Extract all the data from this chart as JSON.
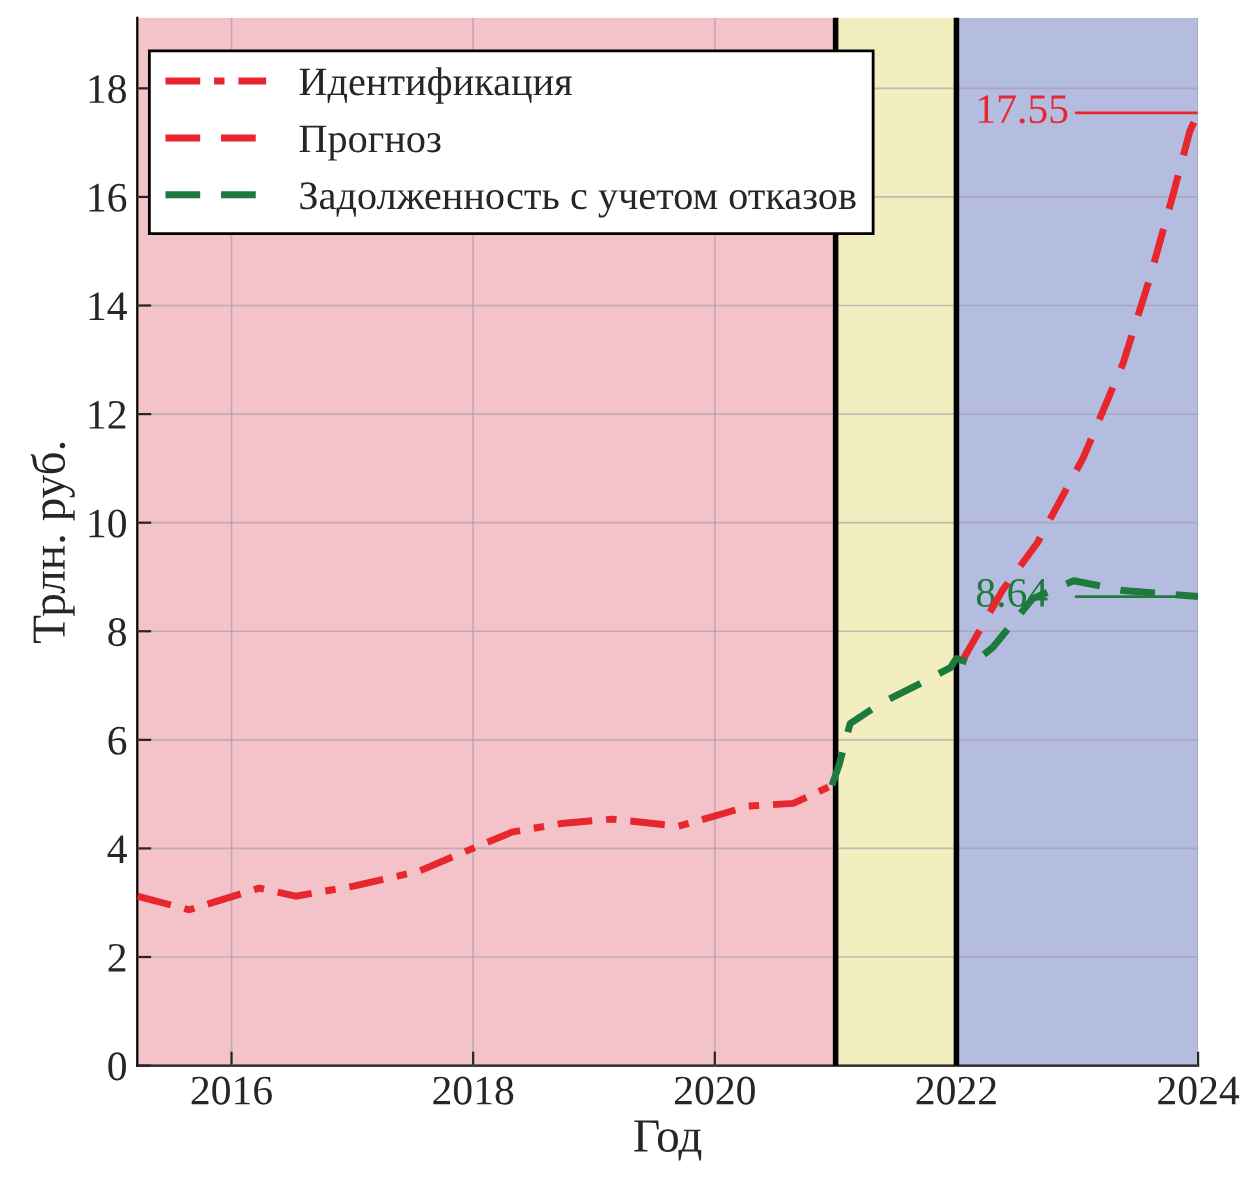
{
  "chart_data": {
    "type": "line",
    "xlabel": "Год",
    "ylabel": "Трлн. руб.",
    "xlim": [
      2015.22,
      2024
    ],
    "ylim": [
      0,
      19.3
    ],
    "xticks": [
      2016,
      2018,
      2020,
      2022,
      2024
    ],
    "yticks": [
      0,
      2,
      4,
      6,
      8,
      10,
      12,
      14,
      16,
      18
    ],
    "grid": true,
    "legend": "top left",
    "marker": "none",
    "series": [
      {
        "name": "Идентификация",
        "color": "#e8262e",
        "line_style": "dashdot",
        "x": [
          2015.22,
          2015.65,
          2016.23,
          2016.53,
          2017.02,
          2017.55,
          2017.9,
          2018.32,
          2018.73,
          2019.15,
          2019.7,
          2020.05,
          2020.28,
          2020.65,
          2020.97
        ],
        "values": [
          3.12,
          2.87,
          3.27,
          3.12,
          3.31,
          3.58,
          3.91,
          4.3,
          4.46,
          4.54,
          4.41,
          4.63,
          4.78,
          4.83,
          5.16
        ]
      },
      {
        "name": "Прогноз",
        "color": "#e8262e",
        "line_style": "dashed",
        "x": [
          2022.05,
          2022.38,
          2022.67,
          2023.05,
          2023.38,
          2023.6,
          2023.8,
          2023.93,
          2024
        ],
        "values": [
          7.46,
          8.75,
          9.63,
          11.2,
          12.94,
          14.5,
          16.1,
          17.2,
          17.55
        ]
      },
      {
        "name": "Задолженность с учетом отказов",
        "color": "#1e7a3c",
        "line_style": "dashed",
        "x": [
          2020.97,
          2021.03,
          2021.12,
          2021.37,
          2021.72,
          2021.95,
          2022.0,
          2022.13,
          2022.3,
          2022.63,
          2022.97,
          2023.38,
          2024
        ],
        "values": [
          5.16,
          5.55,
          6.3,
          6.67,
          7.06,
          7.33,
          7.5,
          7.4,
          7.7,
          8.6,
          8.93,
          8.75,
          8.64
        ]
      }
    ],
    "bands": [
      {
        "axis": "x",
        "from": 2015.22,
        "to": 2021,
        "color": "#f4c3c9"
      },
      {
        "axis": "x",
        "from": 2021,
        "to": 2022,
        "color": "#f3eec0"
      },
      {
        "axis": "x",
        "from": 2022,
        "to": 2024,
        "color": "#b4bde0"
      }
    ],
    "ref_lines": [
      {
        "axis": "x",
        "value": 2021,
        "color": "#000000"
      },
      {
        "axis": "x",
        "value": 2022,
        "color": "#000000"
      },
      {
        "axis": "y",
        "value": 17.55,
        "label": "17.55",
        "color": "#e8262e"
      },
      {
        "axis": "y",
        "value": 8.64,
        "label": "8.64",
        "color": "#1e7a3c"
      }
    ]
  }
}
